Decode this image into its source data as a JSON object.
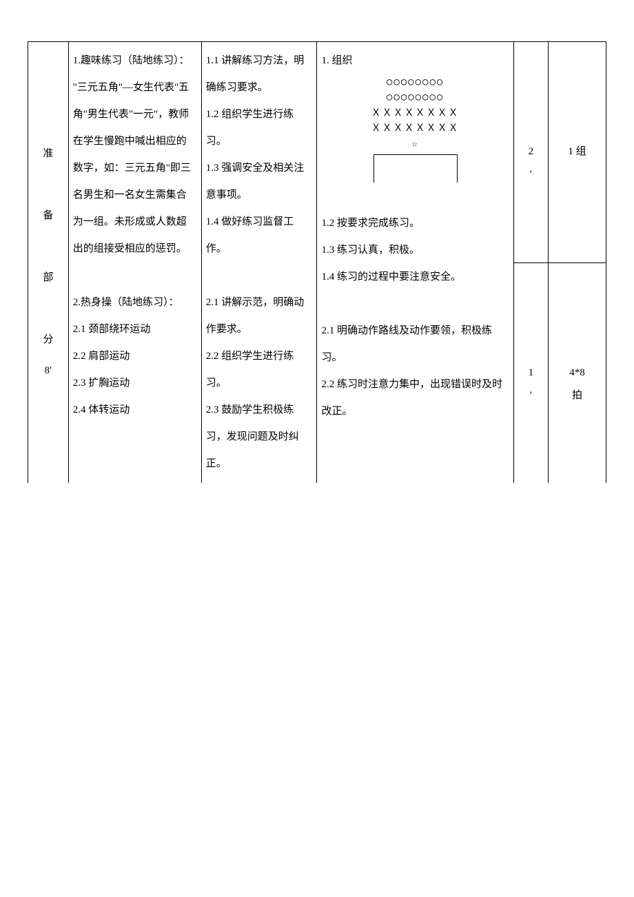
{
  "table": {
    "col_widths": [
      "7%",
      "23%",
      "20%",
      "34%",
      "6%",
      "10%"
    ],
    "section_label": "准\n\n备\n\n部\n\n分\n8′",
    "content": {
      "lines": [
        "1.趣味练习（陆地练习）：",
        "\"三元五角\"—女生代表\"五角\"男生代表\"一元\"，教师在学生慢跑中喊出相应的数字，如：三元五角\"即三名男生和一名女生需集合为一组。未形成或人数超出的组接受相应的惩罚。",
        "",
        "2.热身操（陆地练习）：",
        "2.1 颈部绕环运动",
        "2.2 肩部运动",
        "2.3 扩胸运动",
        "2.4 体转运动"
      ]
    },
    "teacher": {
      "lines": [
        "1.1 讲解练习方法，明确练习要求。",
        "1.2 组织学生进行练习。",
        "1.3 强调安全及相关注意事项。",
        "1.4 做好练习监督工作。",
        "",
        "2.1 讲解示范，明确动作要求。",
        "2.2 组织学生进行练习。",
        "2.3 鼓励学生积极练习，发现问题及时纠正。"
      ]
    },
    "org": {
      "heading": "1. 组织",
      "diagram_rows": [
        "○○○○○○○○",
        "○○○○○○○○",
        "ＸＸＸＸＸＸＸＸ",
        "ＸＸＸＸＸＸＸＸ",
        "☆"
      ],
      "after_lines": [
        "1.2 按要求完成练习。",
        "1.3 练习认真，积极。",
        "1.4 练习的过程中要注意安全。",
        "",
        "2.1 明确动作路线及动作要领，积极练习。",
        "2.2 练习时注意力集中，出现错误时及时改正。"
      ]
    },
    "time_top": "2\n′",
    "time_bottom": "1\n′",
    "reps_top": "1 组",
    "reps_bottom": "4*8\n拍"
  }
}
